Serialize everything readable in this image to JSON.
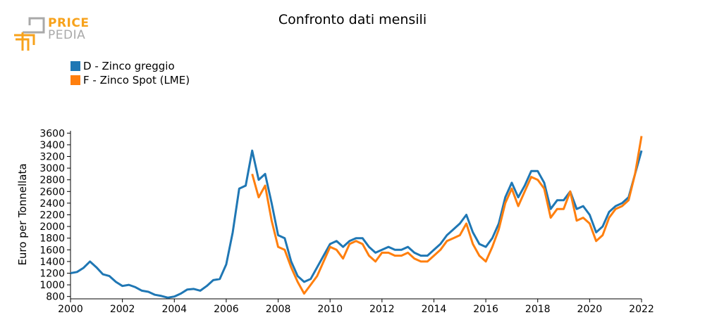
{
  "logo": {
    "line1": "PRICE",
    "line2": "PEDIA"
  },
  "colors": {
    "series_d": "#1f77b4",
    "series_f": "#ff7f0e",
    "logo_orange": "#f7a21b",
    "logo_gray": "#a9a9a9"
  },
  "chart_data": {
    "type": "line",
    "title": "Confronto dati mensili",
    "xlabel": "",
    "ylabel": "Euro per Tonnellata",
    "xlim": [
      2000,
      2022
    ],
    "ylim": [
      760,
      3640
    ],
    "x_ticks": [
      "2000",
      "2002",
      "2004",
      "2006",
      "2008",
      "2010",
      "2012",
      "2014",
      "2016",
      "2018",
      "2020",
      "2022"
    ],
    "y_ticks": [
      "800",
      "1000",
      "1200",
      "1400",
      "1600",
      "1800",
      "2000",
      "2200",
      "2400",
      "2600",
      "2800",
      "3000",
      "3200",
      "3400",
      "3600"
    ],
    "legend_position": "top-left",
    "grid": false,
    "series": [
      {
        "name": "D - Zinco greggio",
        "points": [
          [
            2000.0,
            1200
          ],
          [
            2000.25,
            1220
          ],
          [
            2000.5,
            1290
          ],
          [
            2000.75,
            1400
          ],
          [
            2001.0,
            1300
          ],
          [
            2001.25,
            1180
          ],
          [
            2001.5,
            1150
          ],
          [
            2001.75,
            1050
          ],
          [
            2002.0,
            980
          ],
          [
            2002.25,
            1000
          ],
          [
            2002.5,
            960
          ],
          [
            2002.75,
            900
          ],
          [
            2003.0,
            880
          ],
          [
            2003.25,
            830
          ],
          [
            2003.5,
            810
          ],
          [
            2003.75,
            780
          ],
          [
            2004.0,
            800
          ],
          [
            2004.25,
            850
          ],
          [
            2004.5,
            920
          ],
          [
            2004.75,
            930
          ],
          [
            2005.0,
            900
          ],
          [
            2005.25,
            980
          ],
          [
            2005.5,
            1080
          ],
          [
            2005.75,
            1100
          ],
          [
            2006.0,
            1350
          ],
          [
            2006.25,
            1900
          ],
          [
            2006.5,
            2650
          ],
          [
            2006.75,
            2700
          ],
          [
            2007.0,
            3300
          ],
          [
            2007.25,
            2800
          ],
          [
            2007.5,
            2900
          ],
          [
            2007.75,
            2400
          ],
          [
            2008.0,
            1850
          ],
          [
            2008.25,
            1800
          ],
          [
            2008.5,
            1400
          ],
          [
            2008.75,
            1150
          ],
          [
            2009.0,
            1050
          ],
          [
            2009.25,
            1100
          ],
          [
            2009.5,
            1300
          ],
          [
            2009.75,
            1500
          ],
          [
            2010.0,
            1700
          ],
          [
            2010.25,
            1750
          ],
          [
            2010.5,
            1650
          ],
          [
            2010.75,
            1750
          ],
          [
            2011.0,
            1800
          ],
          [
            2011.25,
            1800
          ],
          [
            2011.5,
            1650
          ],
          [
            2011.75,
            1550
          ],
          [
            2012.0,
            1600
          ],
          [
            2012.25,
            1650
          ],
          [
            2012.5,
            1600
          ],
          [
            2012.75,
            1600
          ],
          [
            2013.0,
            1650
          ],
          [
            2013.25,
            1550
          ],
          [
            2013.5,
            1500
          ],
          [
            2013.75,
            1500
          ],
          [
            2014.0,
            1600
          ],
          [
            2014.25,
            1700
          ],
          [
            2014.5,
            1850
          ],
          [
            2014.75,
            1950
          ],
          [
            2015.0,
            2050
          ],
          [
            2015.25,
            2200
          ],
          [
            2015.5,
            1900
          ],
          [
            2015.75,
            1700
          ],
          [
            2016.0,
            1650
          ],
          [
            2016.25,
            1800
          ],
          [
            2016.5,
            2050
          ],
          [
            2016.75,
            2500
          ],
          [
            2017.0,
            2750
          ],
          [
            2017.25,
            2500
          ],
          [
            2017.5,
            2700
          ],
          [
            2017.75,
            2950
          ],
          [
            2018.0,
            2950
          ],
          [
            2018.25,
            2750
          ],
          [
            2018.5,
            2300
          ],
          [
            2018.75,
            2450
          ],
          [
            2019.0,
            2450
          ],
          [
            2019.25,
            2600
          ],
          [
            2019.5,
            2300
          ],
          [
            2019.75,
            2350
          ],
          [
            2020.0,
            2200
          ],
          [
            2020.25,
            1900
          ],
          [
            2020.5,
            2000
          ],
          [
            2020.75,
            2250
          ],
          [
            2021.0,
            2350
          ],
          [
            2021.25,
            2400
          ],
          [
            2021.5,
            2500
          ],
          [
            2021.75,
            2900
          ],
          [
            2022.0,
            3300
          ]
        ]
      },
      {
        "name": "F - Zinco Spot (LME)",
        "points": [
          [
            2007.0,
            2900
          ],
          [
            2007.25,
            2500
          ],
          [
            2007.5,
            2700
          ],
          [
            2007.75,
            2100
          ],
          [
            2008.0,
            1650
          ],
          [
            2008.25,
            1600
          ],
          [
            2008.5,
            1300
          ],
          [
            2008.75,
            1050
          ],
          [
            2009.0,
            850
          ],
          [
            2009.25,
            1000
          ],
          [
            2009.5,
            1150
          ],
          [
            2009.75,
            1400
          ],
          [
            2010.0,
            1650
          ],
          [
            2010.25,
            1600
          ],
          [
            2010.5,
            1450
          ],
          [
            2010.75,
            1700
          ],
          [
            2011.0,
            1750
          ],
          [
            2011.25,
            1700
          ],
          [
            2011.5,
            1500
          ],
          [
            2011.75,
            1400
          ],
          [
            2012.0,
            1550
          ],
          [
            2012.25,
            1550
          ],
          [
            2012.5,
            1500
          ],
          [
            2012.75,
            1500
          ],
          [
            2013.0,
            1550
          ],
          [
            2013.25,
            1450
          ],
          [
            2013.5,
            1400
          ],
          [
            2013.75,
            1400
          ],
          [
            2014.0,
            1500
          ],
          [
            2014.25,
            1600
          ],
          [
            2014.5,
            1750
          ],
          [
            2014.75,
            1800
          ],
          [
            2015.0,
            1850
          ],
          [
            2015.25,
            2050
          ],
          [
            2015.5,
            1700
          ],
          [
            2015.75,
            1500
          ],
          [
            2016.0,
            1400
          ],
          [
            2016.25,
            1650
          ],
          [
            2016.5,
            1950
          ],
          [
            2016.75,
            2400
          ],
          [
            2017.0,
            2650
          ],
          [
            2017.25,
            2350
          ],
          [
            2017.5,
            2600
          ],
          [
            2017.75,
            2850
          ],
          [
            2018.0,
            2800
          ],
          [
            2018.25,
            2650
          ],
          [
            2018.5,
            2150
          ],
          [
            2018.75,
            2300
          ],
          [
            2019.0,
            2300
          ],
          [
            2019.25,
            2600
          ],
          [
            2019.5,
            2100
          ],
          [
            2019.75,
            2150
          ],
          [
            2020.0,
            2050
          ],
          [
            2020.25,
            1750
          ],
          [
            2020.5,
            1850
          ],
          [
            2020.75,
            2150
          ],
          [
            2021.0,
            2300
          ],
          [
            2021.25,
            2350
          ],
          [
            2021.5,
            2450
          ],
          [
            2021.75,
            2900
          ],
          [
            2022.0,
            3550
          ]
        ]
      }
    ]
  }
}
